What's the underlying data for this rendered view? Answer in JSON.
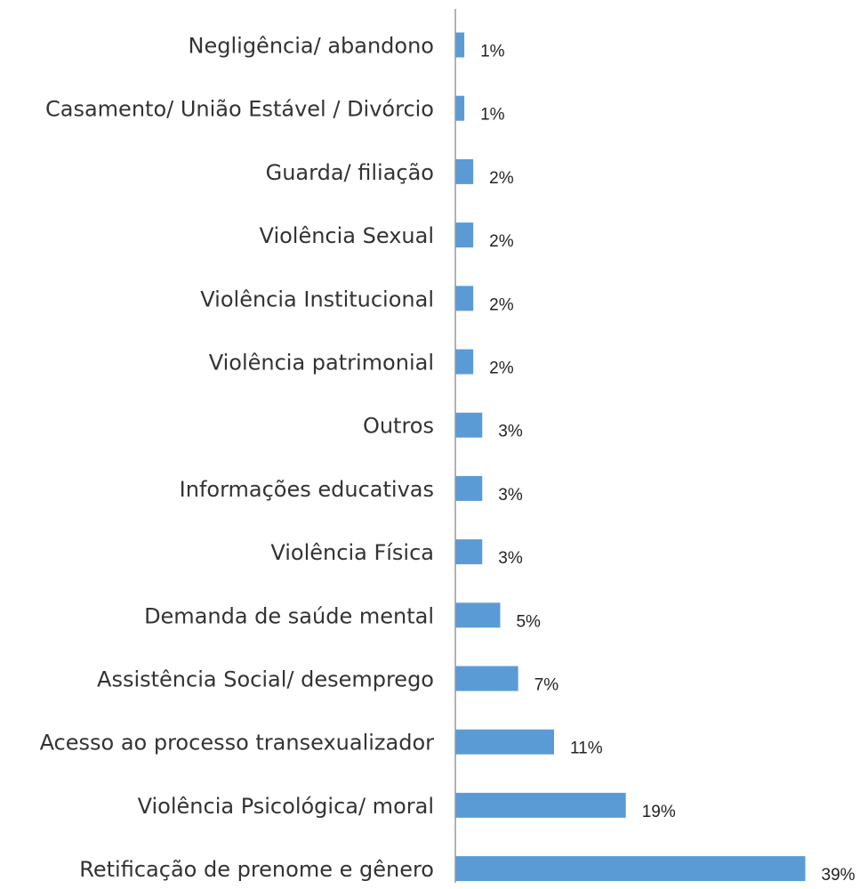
{
  "chart_data": {
    "type": "bar",
    "orientation": "horizontal",
    "title": "",
    "xlabel": "",
    "ylabel": "",
    "categories": [
      "Negligência/ abandono",
      "Casamento/ União Estável / Divórcio",
      "Guarda/ filiação",
      "Violência Sexual",
      "Violência Institucional",
      "Violência patrimonial",
      "Outros",
      "Informações educativas",
      "Violência Física",
      "Demanda de saúde mental",
      "Assistência Social/ desemprego",
      "Acesso ao processo transexualizador",
      "Violência Psicológica/ moral",
      "Retificação de prenome e gênero"
    ],
    "values": [
      1,
      1,
      2,
      2,
      2,
      2,
      3,
      3,
      3,
      5,
      7,
      11,
      19,
      39
    ],
    "value_labels": [
      "1%",
      "1%",
      "2%",
      "2%",
      "2%",
      "2%",
      "3%",
      "3%",
      "3%",
      "5%",
      "7%",
      "11%",
      "19%",
      "39%"
    ],
    "xlim": [
      0,
      40
    ],
    "grid": false,
    "legend": "none",
    "bar_color": "#5b9bd5",
    "axis_color": "#999999"
  }
}
